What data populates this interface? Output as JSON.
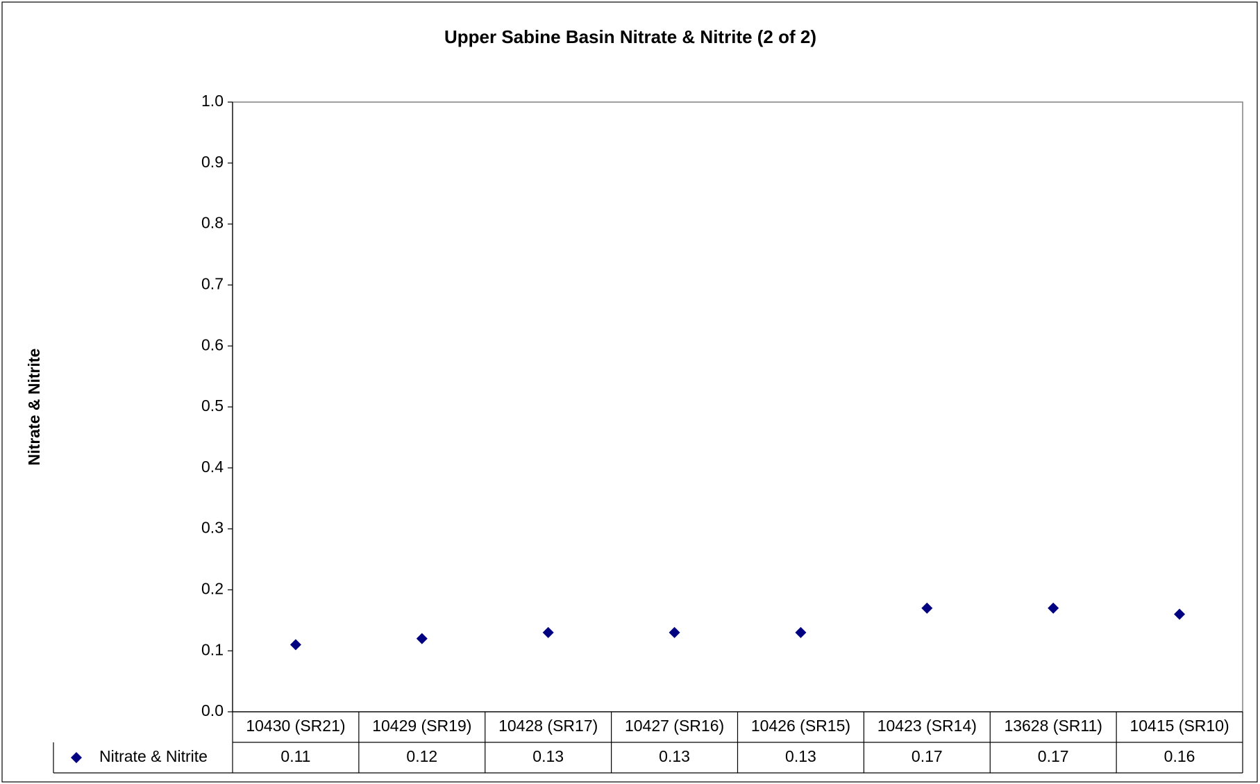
{
  "chart_data": {
    "type": "scatter",
    "title": "Upper Sabine Basin Nitrate & Nitrite (2 of 2)",
    "y_label": "Nitrate & Nitrite",
    "categories": [
      "10430 (SR21)",
      "10429 (SR19)",
      "10428 (SR17)",
      "10427 (SR16)",
      "10426 (SR15)",
      "10423 (SR14)",
      "13628 (SR11)",
      "10415 (SR10)"
    ],
    "series": [
      {
        "name": "Nitrate & Nitrite",
        "color": "#000080",
        "values": [
          0.11,
          0.12,
          0.13,
          0.13,
          0.13,
          0.17,
          0.17,
          0.16
        ]
      }
    ],
    "ylim": [
      0,
      1
    ],
    "yticks": [
      {
        "value": 0,
        "label": "0.0"
      },
      0.1,
      0.2,
      0.3,
      0.4,
      0.5,
      0.6,
      0.7,
      0.8,
      0.9,
      {
        "value": 1,
        "label": "1.0"
      }
    ],
    "grid": false,
    "data_table": true
  }
}
